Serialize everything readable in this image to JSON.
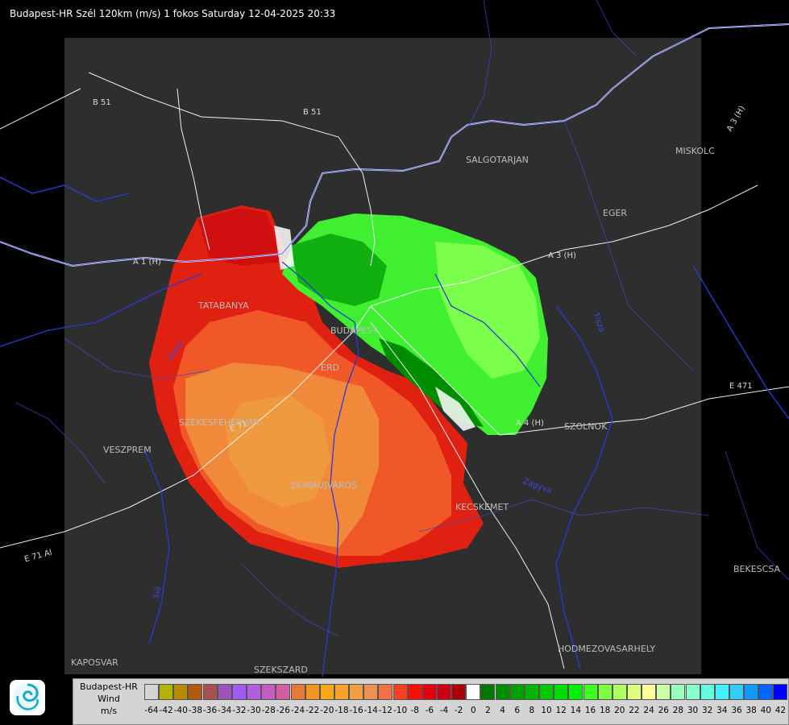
{
  "title": "Budapest-HR Szél 120km (m/s) 1 fokos Saturday 12-04-2025 20:33",
  "cities": [
    {
      "name": "SALGOTARJAN",
      "id": "salgotarjan"
    },
    {
      "name": "MISKOLC",
      "id": "miskolc"
    },
    {
      "name": "EGER",
      "id": "eger"
    },
    {
      "name": "TATABANYA",
      "id": "tatabanya"
    },
    {
      "name": "BUDAPEST",
      "id": "budapest"
    },
    {
      "name": "ERD",
      "id": "erd"
    },
    {
      "name": "SZEKESFEHERVAR",
      "id": "szekesfehervar"
    },
    {
      "name": "VESZPREM",
      "id": "veszprem"
    },
    {
      "name": "DUNAUJVAROS",
      "id": "dunaujvaros"
    },
    {
      "name": "KECSKEMET",
      "id": "kecskemet"
    },
    {
      "name": "SZOLNOK",
      "id": "szolnok"
    },
    {
      "name": "BEKESCSA",
      "id": "bekescsaba"
    },
    {
      "name": "HODMEZOVASARHELY",
      "id": "hodmezovasarhely"
    },
    {
      "name": "KAPOSVAR",
      "id": "kaposvar"
    },
    {
      "name": "SZEKSZARD",
      "id": "szekszard"
    }
  ],
  "roads": [
    {
      "name": "B 51",
      "id": "b51-west"
    },
    {
      "name": "B 51",
      "id": "b51-east"
    },
    {
      "name": "A 3 (H)",
      "id": "a3-north"
    },
    {
      "name": "A 3 (H)",
      "id": "a3-east"
    },
    {
      "name": "A 1 (H)",
      "id": "a1"
    },
    {
      "name": "A 4 (H)",
      "id": "a4"
    },
    {
      "name": "E 71",
      "id": "e71"
    },
    {
      "name": "E 471",
      "id": "e471"
    },
    {
      "name": "E 71 Al",
      "id": "e71-sw"
    }
  ],
  "rivers": [
    {
      "name": "Duna",
      "id": "duna"
    },
    {
      "name": "Tisza",
      "id": "tisza"
    },
    {
      "name": "Zagyva",
      "id": "zagyva"
    },
    {
      "name": "Sió",
      "id": "sio"
    }
  ],
  "legend": {
    "source": "Budapest-HR",
    "quantity": "Wind",
    "unit": "m/s",
    "ticks": [
      "-64",
      "-42",
      "-40",
      "-38",
      "-36",
      "-34",
      "-32",
      "-30",
      "-28",
      "-26",
      "-24",
      "-22",
      "-20",
      "-18",
      "-16",
      "-14",
      "-12",
      "-10",
      "-8",
      "-6",
      "-4",
      "-2",
      "0",
      "2",
      "4",
      "6",
      "8",
      "10",
      "12",
      "14",
      "16",
      "18",
      "20",
      "22",
      "24",
      "26",
      "28",
      "30",
      "32",
      "34",
      "36",
      "38",
      "40",
      "42"
    ],
    "colors": [
      "#d4d4d4",
      "#b2b200",
      "#b78a00",
      "#b05a10",
      "#a85050",
      "#9c54b8",
      "#a05cf0",
      "#b45ce0",
      "#c45cc8",
      "#d45ca0",
      "#e87838",
      "#f49420",
      "#f8a818",
      "#f8a030",
      "#f0a040",
      "#f09050",
      "#f07048",
      "#f84020",
      "#f81008",
      "#e00010",
      "#c80010",
      "#a80008",
      "#ffffff",
      "#007800",
      "#008c00",
      "#00a000",
      "#00b400",
      "#00c800",
      "#00dc00",
      "#00f000",
      "#40ff20",
      "#80ff40",
      "#b0ff60",
      "#e0ff80",
      "#ffff99",
      "#ccffaa",
      "#99ffbb",
      "#88ffcc",
      "#66ffdd",
      "#44eeff",
      "#33ccff",
      "#1199ff",
      "#0066ff",
      "#0000ff"
    ]
  }
}
